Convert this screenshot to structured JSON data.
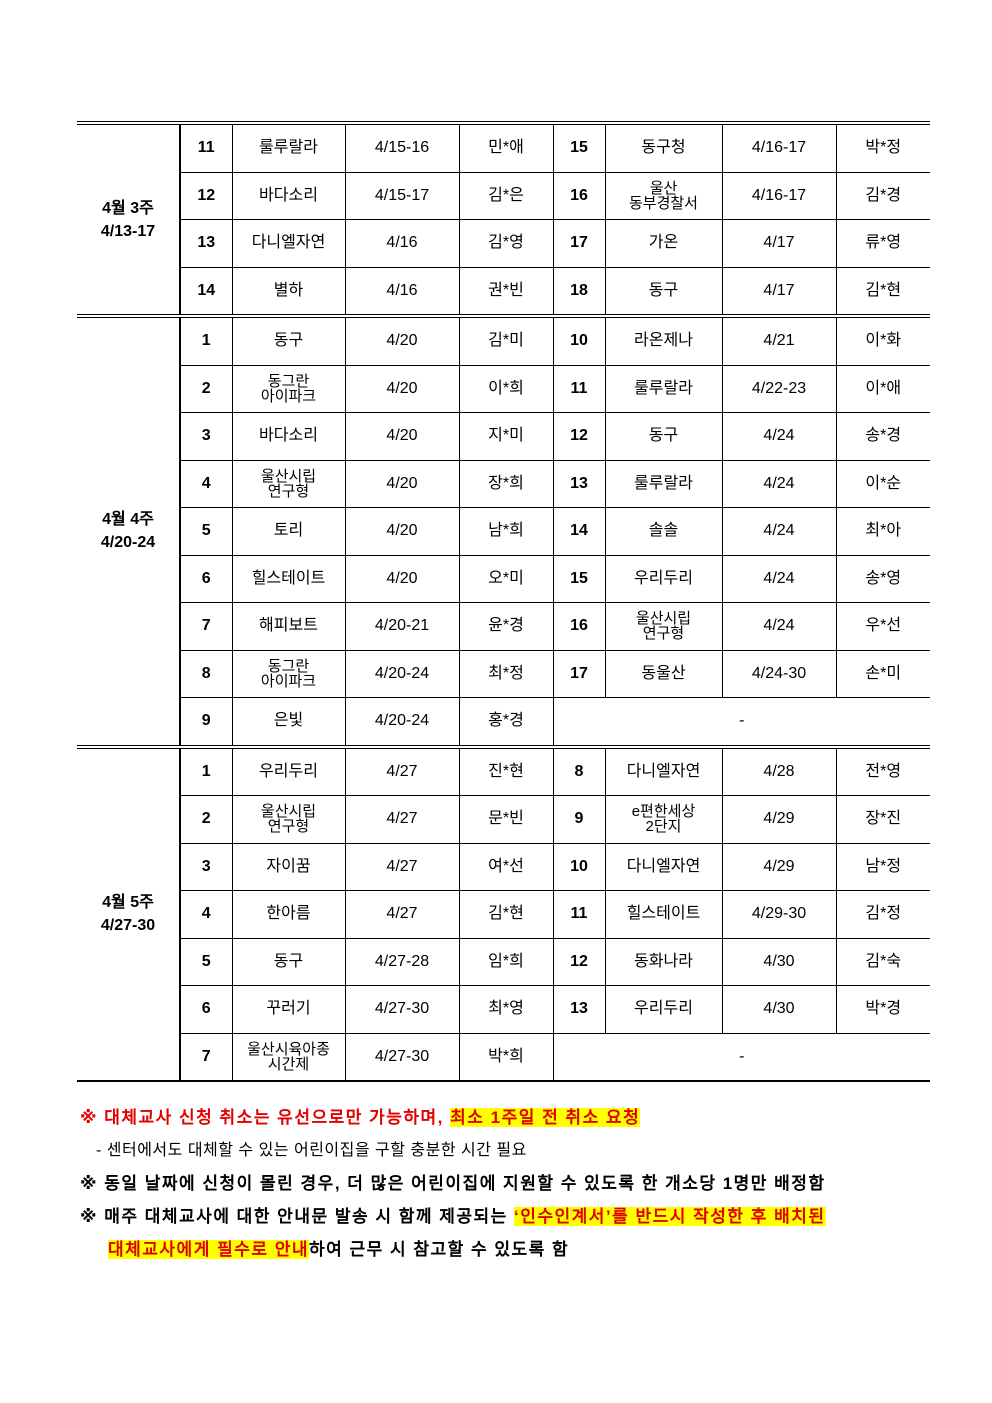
{
  "sections": [
    {
      "week": "4월 3주\n4/13-17",
      "rows": [
        [
          "11",
          "룰루랄라",
          "4/15-16",
          "민*애",
          "15",
          "동구청",
          "4/16-17",
          "박*정"
        ],
        [
          "12",
          "바다소리",
          "4/15-17",
          "김*은",
          "16",
          "울산\n동부경찰서",
          "4/16-17",
          "김*경"
        ],
        [
          "13",
          "다니엘자연",
          "4/16",
          "김*영",
          "17",
          "가온",
          "4/17",
          "류*영"
        ],
        [
          "14",
          "별하",
          "4/16",
          "권*빈",
          "18",
          "동구",
          "4/17",
          "김*현"
        ]
      ]
    },
    {
      "week": "4월 4주\n4/20-24",
      "rows": [
        [
          "1",
          "동구",
          "4/20",
          "김*미",
          "10",
          "라온제나",
          "4/21",
          "이*화"
        ],
        [
          "2",
          "동그란\n아이파크",
          "4/20",
          "이*희",
          "11",
          "룰루랄라",
          "4/22-23",
          "이*애"
        ],
        [
          "3",
          "바다소리",
          "4/20",
          "지*미",
          "12",
          "동구",
          "4/24",
          "송*경"
        ],
        [
          "4",
          "울산시립\n연구형",
          "4/20",
          "장*희",
          "13",
          "룰루랄라",
          "4/24",
          "이*순"
        ],
        [
          "5",
          "토리",
          "4/20",
          "남*희",
          "14",
          "솔솔",
          "4/24",
          "최*아"
        ],
        [
          "6",
          "힐스테이트",
          "4/20",
          "오*미",
          "15",
          "우리두리",
          "4/24",
          "송*영"
        ],
        [
          "7",
          "해피보트",
          "4/20-21",
          "윤*경",
          "16",
          "울산시립\n연구형",
          "4/24",
          "우*선"
        ],
        [
          "8",
          "동그란\n아이파크",
          "4/20-24",
          "최*정",
          "17",
          "동울산",
          "4/24-30",
          "손*미"
        ],
        [
          "9",
          "은빛",
          "4/20-24",
          "홍*경",
          "-"
        ]
      ]
    },
    {
      "week": "4월 5주\n4/27-30",
      "rows": [
        [
          "1",
          "우리두리",
          "4/27",
          "진*현",
          "8",
          "다니엘자연",
          "4/28",
          "전*영"
        ],
        [
          "2",
          "울산시립\n연구형",
          "4/27",
          "문*빈",
          "9",
          "e편한세상\n2단지",
          "4/29",
          "장*진"
        ],
        [
          "3",
          "자이꿈",
          "4/27",
          "여*선",
          "10",
          "다니엘자연",
          "4/29",
          "남*정"
        ],
        [
          "4",
          "한아름",
          "4/27",
          "김*현",
          "11",
          "힐스테이트",
          "4/29-30",
          "김*정"
        ],
        [
          "5",
          "동구",
          "4/27-28",
          "임*희",
          "12",
          "동화나라",
          "4/30",
          "김*숙"
        ],
        [
          "6",
          "꾸러기",
          "4/27-30",
          "최*영",
          "13",
          "우리두리",
          "4/30",
          "박*경"
        ],
        [
          "7",
          "울산시육아종\n시간제",
          "4/27-30",
          "박*희",
          "-"
        ]
      ]
    }
  ],
  "notes": {
    "n1_prefix": "※ 대체교사 신청 취소는 유선으로만 가능하며, ",
    "n1_highlight": "최소 1주일 전 취소 요청",
    "n1_sub": "- 센터에서도 대체할 수 있는 어린이집을 구할 충분한 시간 필요",
    "n2": "※ 동일 날짜에 신청이 몰린 경우, 더 많은 어린이집에 지원할 수 있도록 한 개소당 1명만 배정함",
    "n3_prefix": "※ 매주 대체교사에 대한 안내문 발송 시 함께 제공되는 ",
    "n3_highlight": "‘인수인계서’를 반드시 작성한 후 배치된",
    "n3_highlight2": "대체교사에게 필수로 안내",
    "n3_suffix": "하여 근무 시 참고할 수 있도록 함",
    "highlight_color": "#ffff00",
    "text_red": "#e00000"
  }
}
